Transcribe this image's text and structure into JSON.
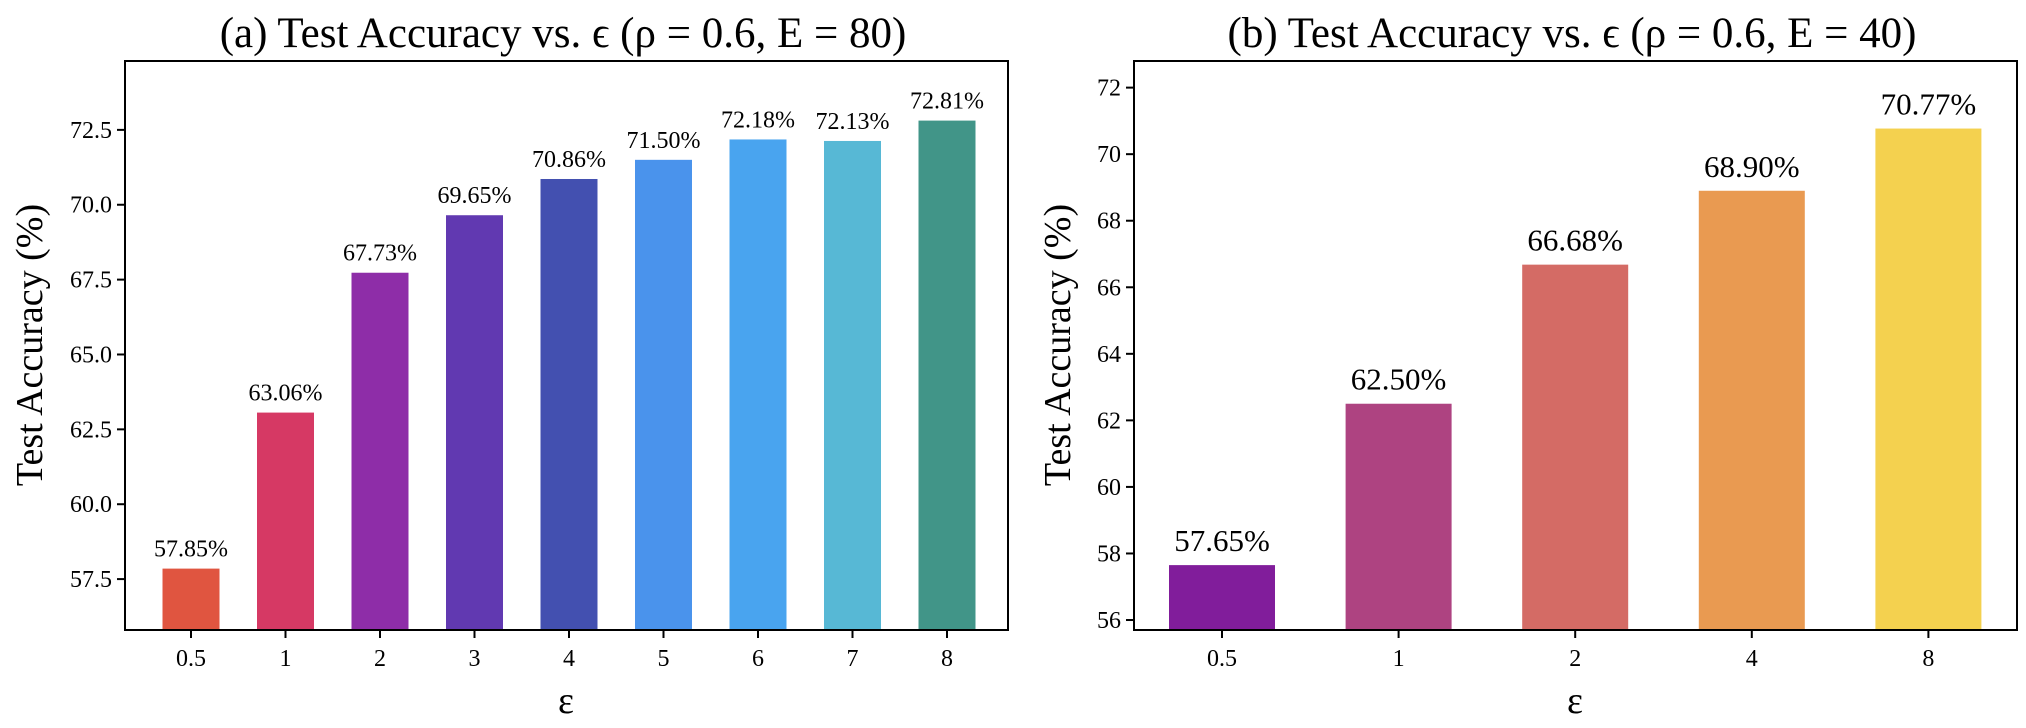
{
  "chart_data": [
    {
      "type": "bar",
      "title": "(a) Test Accuracy vs. ϵ (ρ = 0.6, E = 80)",
      "xlabel": "ε",
      "ylabel": "Test Accuracy (%)",
      "categories": [
        "0.5",
        "1",
        "2",
        "3",
        "4",
        "5",
        "6",
        "7",
        "8"
      ],
      "values": [
        57.85,
        63.06,
        67.73,
        69.65,
        70.86,
        71.5,
        72.18,
        72.13,
        72.81
      ],
      "value_labels": [
        "57.85%",
        "63.06%",
        "67.73%",
        "69.65%",
        "70.86%",
        "71.50%",
        "72.18%",
        "72.13%",
        "72.81%"
      ],
      "colors": [
        "#e05540",
        "#d63964",
        "#8e2da8",
        "#6139b1",
        "#4350b0",
        "#4a93ec",
        "#49a4ef",
        "#57b8d5",
        "#419588"
      ],
      "yticks": [
        57.5,
        60.0,
        62.5,
        65.0,
        67.5,
        70.0,
        72.5
      ],
      "ytick_labels": [
        "57.5",
        "60.0",
        "62.5",
        "65.0",
        "67.5",
        "70.0",
        "72.5"
      ],
      "ylim": [
        55.8,
        74.8
      ],
      "grid": false
    },
    {
      "type": "bar",
      "title": "(b) Test Accuracy vs. ϵ (ρ = 0.6, E = 40)",
      "xlabel": "ε",
      "ylabel": "Test Accuracy (%)",
      "categories": [
        "0.5",
        "1",
        "2",
        "4",
        "8"
      ],
      "values": [
        57.65,
        62.5,
        66.68,
        68.9,
        70.77
      ],
      "value_labels": [
        "57.65%",
        "62.50%",
        "66.68%",
        "68.90%",
        "70.77%"
      ],
      "colors": [
        "#811d9b",
        "#ae4381",
        "#d46b65",
        "#e99a51",
        "#f4d14f"
      ],
      "yticks": [
        56,
        58,
        60,
        62,
        64,
        66,
        68,
        70,
        72
      ],
      "ytick_labels": [
        "56",
        "58",
        "60",
        "62",
        "64",
        "66",
        "68",
        "70",
        "72"
      ],
      "ylim": [
        55.7,
        72.8
      ],
      "grid": false
    }
  ]
}
